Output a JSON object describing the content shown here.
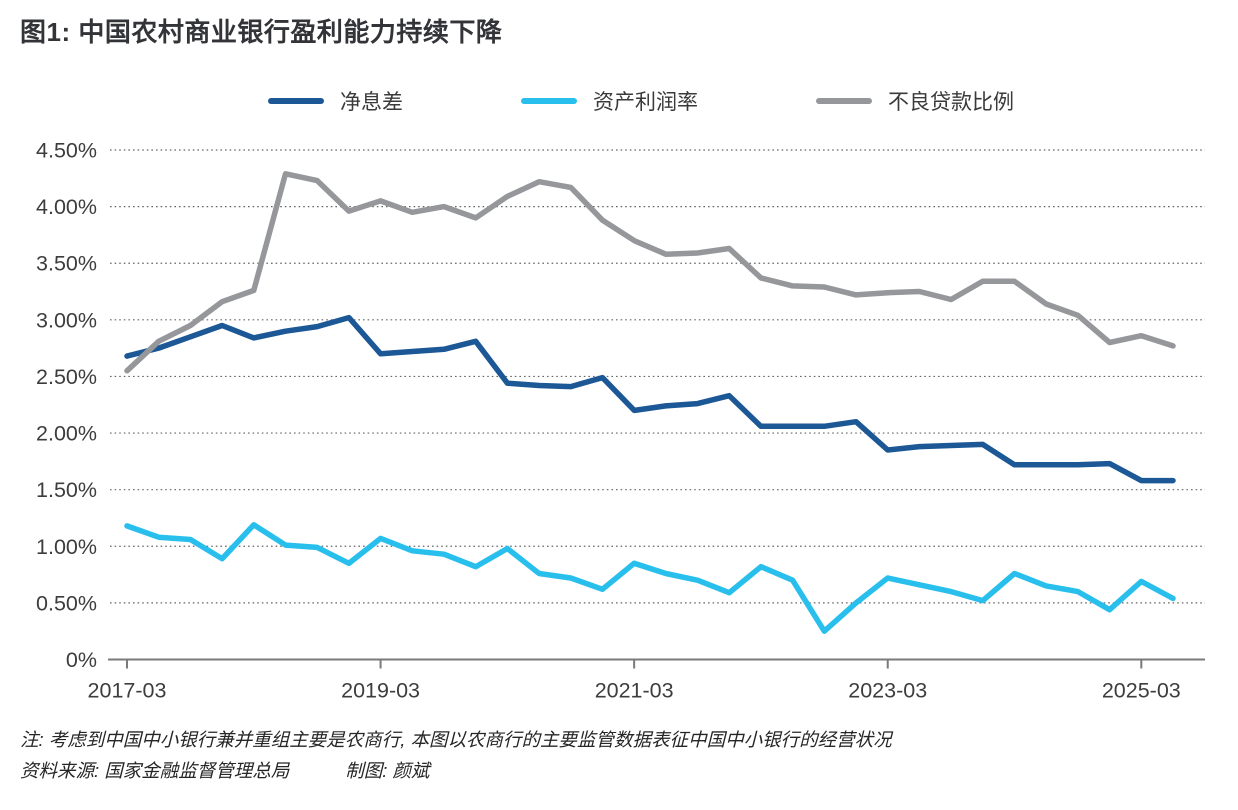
{
  "title": "图1: 中国农村商业银行盈利能力持续下降",
  "legend": [
    {
      "id": "nim",
      "label": "净息差",
      "color": "#1c5796"
    },
    {
      "id": "roa",
      "label": "资产利润率",
      "color": "#29bfec"
    },
    {
      "id": "npl",
      "label": "不良贷款比例",
      "color": "#95979a"
    }
  ],
  "notes": {
    "line1": "注: 考虑到中国中小银行兼并重组主要是农商行, 本图以农商行的主要监管数据表征中国中小银行的经营状况",
    "source": "资料来源: 国家金融监督管理总局",
    "credit": "制图: 颜斌"
  },
  "colors": {
    "axis": "#7a7a7a",
    "grid": "#666666",
    "tick_label": "#3d3d3d"
  },
  "chart_data": {
    "type": "line",
    "title": "图1: 中国农村商业银行盈利能力持续下降",
    "xlabel": "",
    "ylabel": "",
    "ylim": [
      0,
      4.5
    ],
    "ytick_step": 0.5,
    "ytick_labels": [
      "0%",
      "0.50%",
      "1.00%",
      "1.50%",
      "2.00%",
      "2.50%",
      "3.00%",
      "3.50%",
      "4.00%",
      "4.50%"
    ],
    "xtick_positions": [
      0,
      8,
      16,
      24,
      32
    ],
    "xtick_labels": [
      "2017-03",
      "2019-03",
      "2021-03",
      "2023-03",
      "2025-03"
    ],
    "grid": "horizontal-dotted",
    "legend_position": "top",
    "categories": [
      "2017-03",
      "2017-06",
      "2017-09",
      "2017-12",
      "2018-03",
      "2018-06",
      "2018-09",
      "2018-12",
      "2019-03",
      "2019-06",
      "2019-09",
      "2019-12",
      "2020-03",
      "2020-06",
      "2020-09",
      "2020-12",
      "2021-03",
      "2021-06",
      "2021-09",
      "2021-12",
      "2022-03",
      "2022-06",
      "2022-09",
      "2022-12",
      "2023-03",
      "2023-06",
      "2023-09",
      "2023-12",
      "2024-03",
      "2024-06",
      "2024-09",
      "2024-12",
      "2025-03",
      "2025-06"
    ],
    "series": [
      {
        "id": "nim",
        "name": "净息差",
        "color": "#1c5796",
        "values": [
          2.68,
          2.75,
          2.85,
          2.95,
          2.84,
          2.9,
          2.94,
          3.02,
          2.7,
          2.72,
          2.74,
          2.81,
          2.44,
          2.42,
          2.41,
          2.49,
          2.2,
          2.24,
          2.26,
          2.33,
          2.06,
          2.06,
          2.06,
          2.1,
          1.85,
          1.88,
          1.89,
          1.9,
          1.72,
          1.72,
          1.72,
          1.73,
          1.58,
          1.58
        ]
      },
      {
        "id": "roa",
        "name": "资产利润率",
        "color": "#29bfec",
        "values": [
          1.18,
          1.08,
          1.06,
          0.89,
          1.19,
          1.01,
          0.99,
          0.85,
          1.07,
          0.96,
          0.93,
          0.82,
          0.98,
          0.76,
          0.72,
          0.62,
          0.85,
          0.76,
          0.7,
          0.59,
          0.82,
          0.7,
          0.25,
          0.5,
          0.72,
          0.66,
          0.6,
          0.52,
          0.76,
          0.65,
          0.6,
          0.44,
          0.69,
          0.54
        ]
      },
      {
        "id": "npl",
        "name": "不良贷款比例",
        "color": "#95979a",
        "values": [
          2.55,
          2.81,
          2.95,
          3.16,
          3.26,
          4.29,
          4.23,
          3.96,
          4.05,
          3.95,
          4.0,
          3.9,
          4.09,
          4.22,
          4.17,
          3.88,
          3.7,
          3.58,
          3.59,
          3.63,
          3.37,
          3.3,
          3.29,
          3.22,
          3.24,
          3.25,
          3.18,
          3.34,
          3.34,
          3.14,
          3.04,
          2.8,
          2.86,
          2.77
        ]
      }
    ]
  }
}
